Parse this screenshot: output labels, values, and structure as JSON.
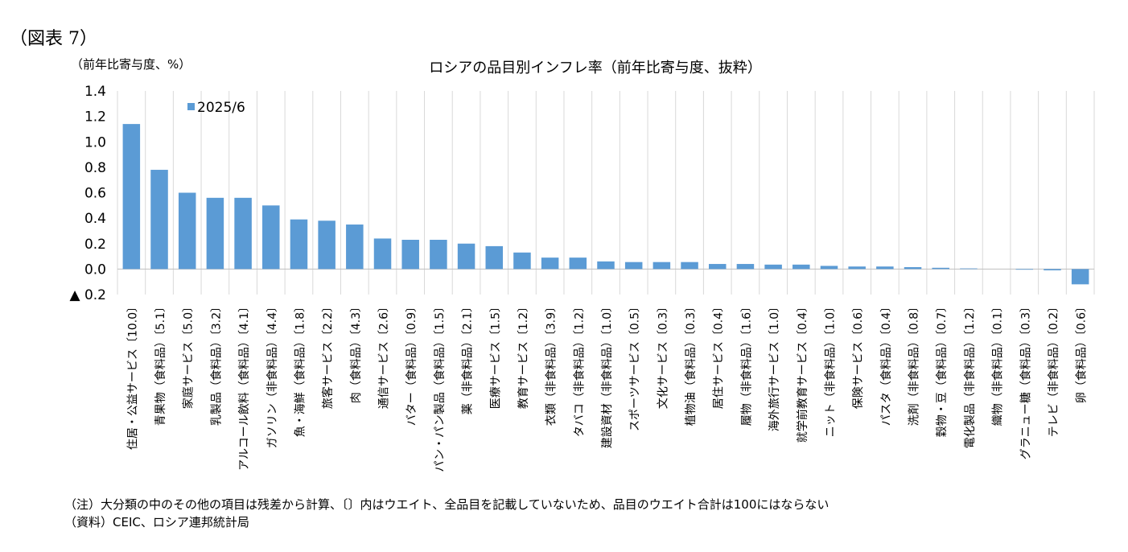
{
  "figure_label": "（図表 7）",
  "unit_label": "（前年比寄与度、%）",
  "notes": [
    "（注）大分類の中のその他の項目は残差から計算、〔〕内はウエイト、全品目を記載していないため、品目のウエイト合計は100にはならない",
    "（資料）CEIC、ロシア連邦統計局"
  ],
  "colors": {
    "bar": "#5b9bd5",
    "grid": "#d9d9d9"
  },
  "chart_data": {
    "type": "bar",
    "title": "ロシアの品目別インフレ率（前年比寄与度、抜粋）",
    "ylabel": "（前年比寄与度、%）",
    "ylim": [
      -0.2,
      1.4
    ],
    "yticks": [
      1.4,
      1.2,
      1.0,
      0.8,
      0.6,
      0.4,
      0.2,
      0.0,
      -0.2
    ],
    "ytick_labels": [
      "1.4",
      "1.2",
      "1.0",
      "0.8",
      "0.6",
      "0.4",
      "0.2",
      "0.0",
      "▲ 0.2"
    ],
    "grid": "vertical",
    "legend_position": "top-left",
    "categories": [
      "住居・公益サービス〔10.0〕",
      "青果物（食料品）〔5.1〕",
      "家庭サービス〔5.0〕",
      "乳製品（食料品）〔3.2〕",
      "アルコール飲料（食料品）〔4.1〕",
      "ガソリン（非食料品）〔4.4〕",
      "魚・海鮮（食料品）〔1.8〕",
      "旅客サービス〔2.2〕",
      "肉（食料品）〔4.3〕",
      "通信サービス〔2.6〕",
      "バター（食料品）〔0.9〕",
      "パン・パン製品（食料品）〔1.5〕",
      "薬（非食料品）〔2.1〕",
      "医療サービス〔1.5〕",
      "教育サービス〔1.2〕",
      "衣類（非食料品）〔3.9〕",
      "タバコ（非食料品）〔1.2〕",
      "建設資材（非食料品）〔1.0〕",
      "スポーツサービス〔0.5〕",
      "文化サービス〔0.3〕",
      "植物油（食料品）〔0.3〕",
      "居住サービス〔0.4〕",
      "履物（非食料品）〔1.6〕",
      "海外旅行サービス〔1.0〕",
      "就学前教育サービス〔0.4〕",
      "ニット（非食料品）〔1.0〕",
      "保険サービス〔0.6〕",
      "パスタ（食料品）〔0.4〕",
      "洗剤（非食料品）〔0.8〕",
      "穀物・豆（食料品）〔0.7〕",
      "電化製品（非食料品）〔1.2〕",
      "織物（非食料品）〔0.1〕",
      "グラニュー糖（食料品）〔0.3〕",
      "テレビ（非食料品）〔0.2〕",
      "卵（食料品）〔0.6〕"
    ],
    "series": [
      {
        "name": "2025/6",
        "values": [
          1.14,
          0.78,
          0.6,
          0.56,
          0.56,
          0.5,
          0.39,
          0.38,
          0.35,
          0.24,
          0.23,
          0.23,
          0.2,
          0.18,
          0.13,
          0.09,
          0.09,
          0.06,
          0.055,
          0.055,
          0.055,
          0.04,
          0.04,
          0.035,
          0.035,
          0.025,
          0.02,
          0.02,
          0.015,
          0.01,
          0.005,
          0.0,
          -0.005,
          -0.01,
          -0.12
        ]
      }
    ]
  }
}
